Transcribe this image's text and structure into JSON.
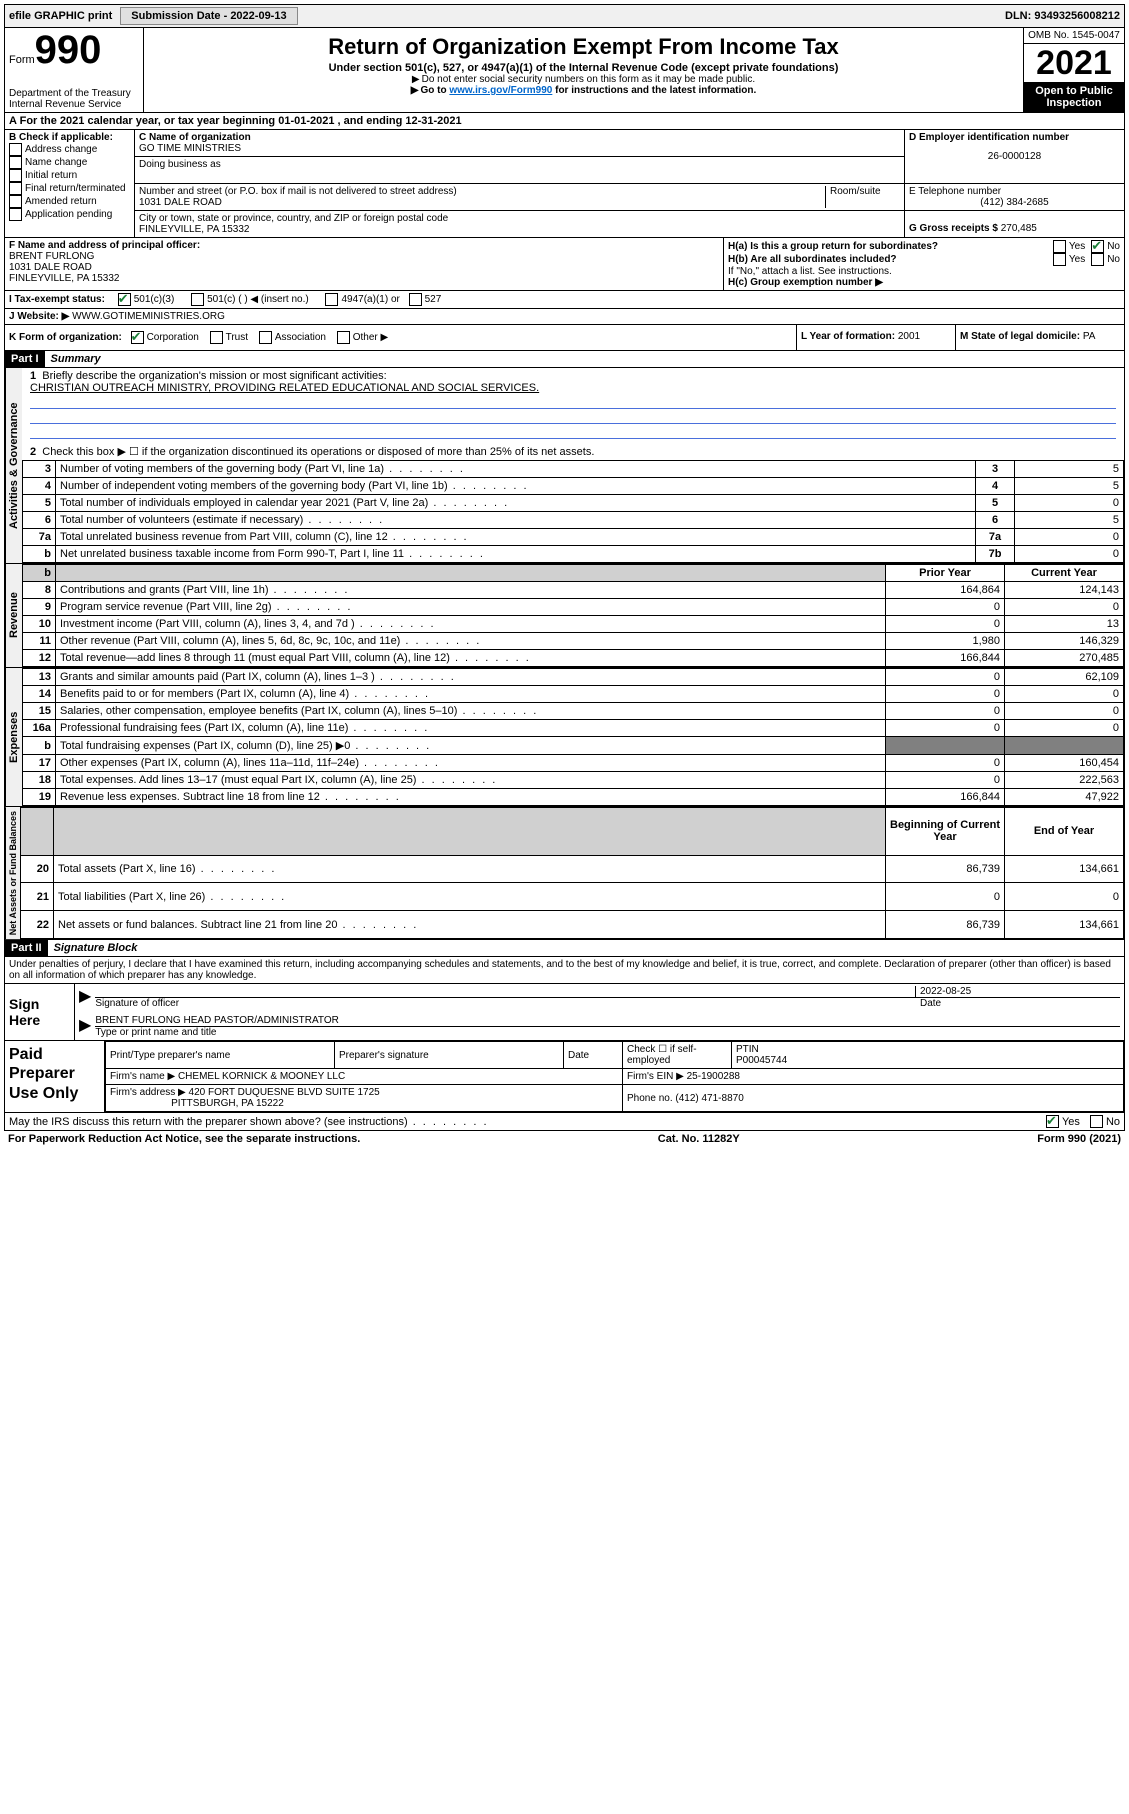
{
  "topbar": {
    "efile": "efile GRAPHIC print",
    "sub_label": "Submission Date - 2022-09-13",
    "dln": "DLN: 93493256008212"
  },
  "header": {
    "form_word": "Form",
    "form_num": "990",
    "dept": "Department of the Treasury",
    "irs": "Internal Revenue Service",
    "title": "Return of Organization Exempt From Income Tax",
    "sub1": "Under section 501(c), 527, or 4947(a)(1) of the Internal Revenue Code (except private foundations)",
    "note1": "Do not enter social security numbers on this form as it may be made public.",
    "note2_a": "Go to ",
    "note2_link": "www.irs.gov/Form990",
    "note2_b": " for instructions and the latest information.",
    "omb": "OMB No. 1545-0047",
    "year": "2021",
    "inspection": "Open to Public Inspection"
  },
  "lineA": {
    "text_a": "For the 2021 calendar year, or tax year beginning ",
    "begin": "01-01-2021",
    "text_b": " , and ending ",
    "end": "12-31-2021"
  },
  "colB": {
    "hdr": "B Check if applicable:",
    "opts": [
      "Address change",
      "Name change",
      "Initial return",
      "Final return/terminated",
      "Amended return",
      "Application pending"
    ]
  },
  "entity": {
    "c_name_lbl": "C Name of organization",
    "c_name": "GO TIME MINISTRIES",
    "dba_lbl": "Doing business as",
    "addr_lbl": "Number and street (or P.O. box if mail is not delivered to street address)",
    "room_lbl": "Room/suite",
    "addr": "1031 DALE ROAD",
    "city_lbl": "City or town, state or province, country, and ZIP or foreign postal code",
    "city": "FINLEYVILLE, PA  15332",
    "d_lbl": "D Employer identification number",
    "d": "26-0000128",
    "e_lbl": "E Telephone number",
    "e": "(412) 384-2685",
    "g_lbl": "G Gross receipts $ ",
    "g": "270,485"
  },
  "fh": {
    "f_lbl": "F Name and address of principal officer:",
    "f_name": "BRENT FURLONG",
    "f_addr1": "1031 DALE ROAD",
    "f_addr2": "FINLEYVILLE, PA  15332",
    "ha_lbl": "H(a)  Is this a group return for subordinates?",
    "hb_lbl": "H(b)  Are all subordinates included?",
    "hb_note": "If \"No,\" attach a list. See instructions.",
    "hc_lbl": "H(c)  Group exemption number ▶",
    "yes": "Yes",
    "no": "No"
  },
  "i": {
    "label": "I   Tax-exempt status:",
    "o1": "501(c)(3)",
    "o2": "501(c) (  ) ◀ (insert no.)",
    "o3": "4947(a)(1) or",
    "o4": "527"
  },
  "j": {
    "label": "J   Website: ▶",
    "val": "WWW.GOTIMEMINISTRIES.ORG"
  },
  "k": {
    "label": "K Form of organization:",
    "o": [
      "Corporation",
      "Trust",
      "Association",
      "Other ▶"
    ]
  },
  "l": {
    "label": "L Year of formation: ",
    "val": "2001"
  },
  "m": {
    "label": "M State of legal domicile: ",
    "val": "PA"
  },
  "part1": {
    "hdr": "Part I",
    "title": "Summary"
  },
  "summary": {
    "l1_lbl": "Briefly describe the organization's mission or most significant activities:",
    "l1_val": "CHRISTIAN OUTREACH MINISTRY, PROVIDING RELATED EDUCATIONAL AND SOCIAL SERVICES.",
    "l2": "Check this box ▶ ☐  if the organization discontinued its operations or disposed of more than 25% of its net assets.",
    "rows_single": [
      {
        "n": "3",
        "d": "Number of voting members of the governing body (Part VI, line 1a)",
        "k": "3",
        "v": "5"
      },
      {
        "n": "4",
        "d": "Number of independent voting members of the governing body (Part VI, line 1b)",
        "k": "4",
        "v": "5"
      },
      {
        "n": "5",
        "d": "Total number of individuals employed in calendar year 2021 (Part V, line 2a)",
        "k": "5",
        "v": "0"
      },
      {
        "n": "6",
        "d": "Total number of volunteers (estimate if necessary)",
        "k": "6",
        "v": "5"
      },
      {
        "n": "7a",
        "d": "Total unrelated business revenue from Part VIII, column (C), line 12",
        "k": "7a",
        "v": "0"
      },
      {
        "n": "b",
        "d": "Net unrelated business taxable income from Form 990-T, Part I, line 11",
        "k": "7b",
        "v": "0"
      }
    ],
    "py_hdr": "Prior Year",
    "cy_hdr": "Current Year",
    "rev_rows": [
      {
        "n": "8",
        "d": "Contributions and grants (Part VIII, line 1h)",
        "p": "164,864",
        "c": "124,143"
      },
      {
        "n": "9",
        "d": "Program service revenue (Part VIII, line 2g)",
        "p": "0",
        "c": "0"
      },
      {
        "n": "10",
        "d": "Investment income (Part VIII, column (A), lines 3, 4, and 7d )",
        "p": "0",
        "c": "13"
      },
      {
        "n": "11",
        "d": "Other revenue (Part VIII, column (A), lines 5, 6d, 8c, 9c, 10c, and 11e)",
        "p": "1,980",
        "c": "146,329"
      },
      {
        "n": "12",
        "d": "Total revenue—add lines 8 through 11 (must equal Part VIII, column (A), line 12)",
        "p": "166,844",
        "c": "270,485"
      }
    ],
    "exp_rows": [
      {
        "n": "13",
        "d": "Grants and similar amounts paid (Part IX, column (A), lines 1–3 )",
        "p": "0",
        "c": "62,109"
      },
      {
        "n": "14",
        "d": "Benefits paid to or for members (Part IX, column (A), line 4)",
        "p": "0",
        "c": "0"
      },
      {
        "n": "15",
        "d": "Salaries, other compensation, employee benefits (Part IX, column (A), lines 5–10)",
        "p": "0",
        "c": "0"
      },
      {
        "n": "16a",
        "d": "Professional fundraising fees (Part IX, column (A), line 11e)",
        "p": "0",
        "c": "0"
      },
      {
        "n": "b",
        "d": "Total fundraising expenses (Part IX, column (D), line 25) ▶0",
        "p": "",
        "c": ""
      },
      {
        "n": "17",
        "d": "Other expenses (Part IX, column (A), lines 11a–11d, 11f–24e)",
        "p": "0",
        "c": "160,454"
      },
      {
        "n": "18",
        "d": "Total expenses. Add lines 13–17 (must equal Part IX, column (A), line 25)",
        "p": "0",
        "c": "222,563"
      },
      {
        "n": "19",
        "d": "Revenue less expenses. Subtract line 18 from line 12",
        "p": "166,844",
        "c": "47,922"
      }
    ],
    "na_hdr1": "Beginning of Current Year",
    "na_hdr2": "End of Year",
    "na_rows": [
      {
        "n": "20",
        "d": "Total assets (Part X, line 16)",
        "p": "86,739",
        "c": "134,661"
      },
      {
        "n": "21",
        "d": "Total liabilities (Part X, line 26)",
        "p": "0",
        "c": "0"
      },
      {
        "n": "22",
        "d": "Net assets or fund balances. Subtract line 21 from line 20",
        "p": "86,739",
        "c": "134,661"
      }
    ],
    "side": {
      "gov": "Activities & Governance",
      "rev": "Revenue",
      "exp": "Expenses",
      "na": "Net Assets or Fund Balances"
    }
  },
  "part2": {
    "hdr": "Part II",
    "title": "Signature Block"
  },
  "sig": {
    "perjury": "Under penalties of perjury, I declare that I have examined this return, including accompanying schedules and statements, and to the best of my knowledge and belief, it is true, correct, and complete. Declaration of preparer (other than officer) is based on all information of which preparer has any knowledge.",
    "sign_here": "Sign Here",
    "sig_officer": "Signature of officer",
    "date_lbl": "Date",
    "date_val": "2022-08-25",
    "name_title": "BRENT FURLONG  HEAD PASTOR/ADMINISTRATOR",
    "type_name": "Type or print name and title"
  },
  "prep": {
    "label": "Paid Preparer Use Only",
    "h1": "Print/Type preparer's name",
    "h2": "Preparer's signature",
    "h3": "Date",
    "h4a": "Check ☐ if self-employed",
    "h4b": "PTIN",
    "ptin": "P00045744",
    "firm_name_lbl": "Firm's name   ▶ ",
    "firm_name": "CHEMEL KORNICK & MOONEY LLC",
    "firm_ein_lbl": "Firm's EIN ▶ ",
    "firm_ein": "25-1900288",
    "firm_addr_lbl": "Firm's address ▶ ",
    "firm_addr1": "420 FORT DUQUESNE BLVD SUITE 1725",
    "firm_addr2": "PITTSBURGH, PA  15222",
    "phone_lbl": "Phone no. ",
    "phone": "(412) 471-8870"
  },
  "discuss": {
    "q": "May the IRS discuss this return with the preparer shown above? (see instructions)",
    "yes": "Yes",
    "no": "No"
  },
  "footer": {
    "left": "For Paperwork Reduction Act Notice, see the separate instructions.",
    "mid": "Cat. No. 11282Y",
    "right": "Form 990 (2021)"
  },
  "colors": {
    "link": "#0066cc",
    "blueline": "#4a6fdc",
    "check": "#1a7f37",
    "shade": "#d0d0d0",
    "grey": "#808080"
  }
}
